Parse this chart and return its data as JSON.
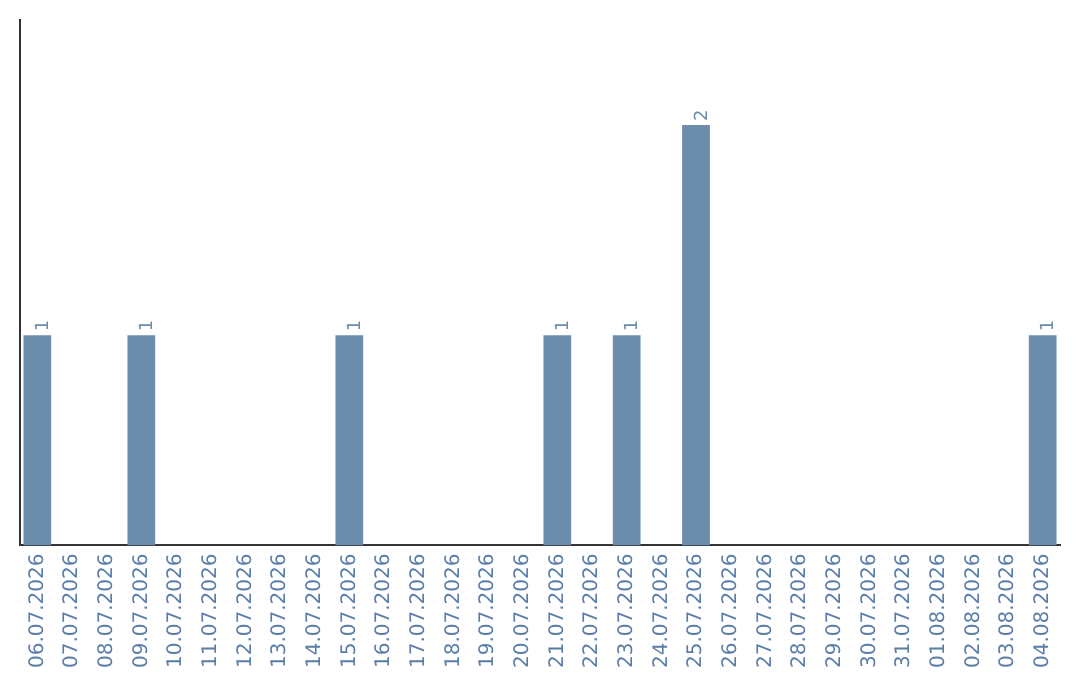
{
  "chart_data": {
    "type": "bar",
    "categories": [
      "06.07.2026",
      "07.07.2026",
      "08.07.2026",
      "09.07.2026",
      "10.07.2026",
      "11.07.2026",
      "12.07.2026",
      "13.07.2026",
      "14.07.2026",
      "15.07.2026",
      "16.07.2026",
      "17.07.2026",
      "18.07.2026",
      "19.07.2026",
      "20.07.2026",
      "21.07.2026",
      "22.07.2026",
      "23.07.2026",
      "24.07.2026",
      "25.07.2026",
      "26.07.2026",
      "27.07.2026",
      "28.07.2026",
      "29.07.2026",
      "30.07.2026",
      "31.07.2026",
      "01.08.2026",
      "02.08.2026",
      "03.08.2026",
      "04.08.2026"
    ],
    "values": [
      1,
      0,
      0,
      1,
      0,
      0,
      0,
      0,
      0,
      1,
      0,
      0,
      0,
      0,
      0,
      1,
      0,
      1,
      0,
      2,
      0,
      0,
      0,
      0,
      0,
      0,
      0,
      0,
      0,
      1
    ],
    "value_labels": [
      "1",
      null,
      null,
      "1",
      null,
      null,
      null,
      null,
      null,
      "1",
      null,
      null,
      null,
      null,
      null,
      "1",
      null,
      "1",
      null,
      "2",
      null,
      null,
      null,
      null,
      null,
      null,
      null,
      null,
      null,
      "1"
    ],
    "color": "#6b8cab",
    "grid": false,
    "legend": false,
    "tick_labels": "x"
  }
}
